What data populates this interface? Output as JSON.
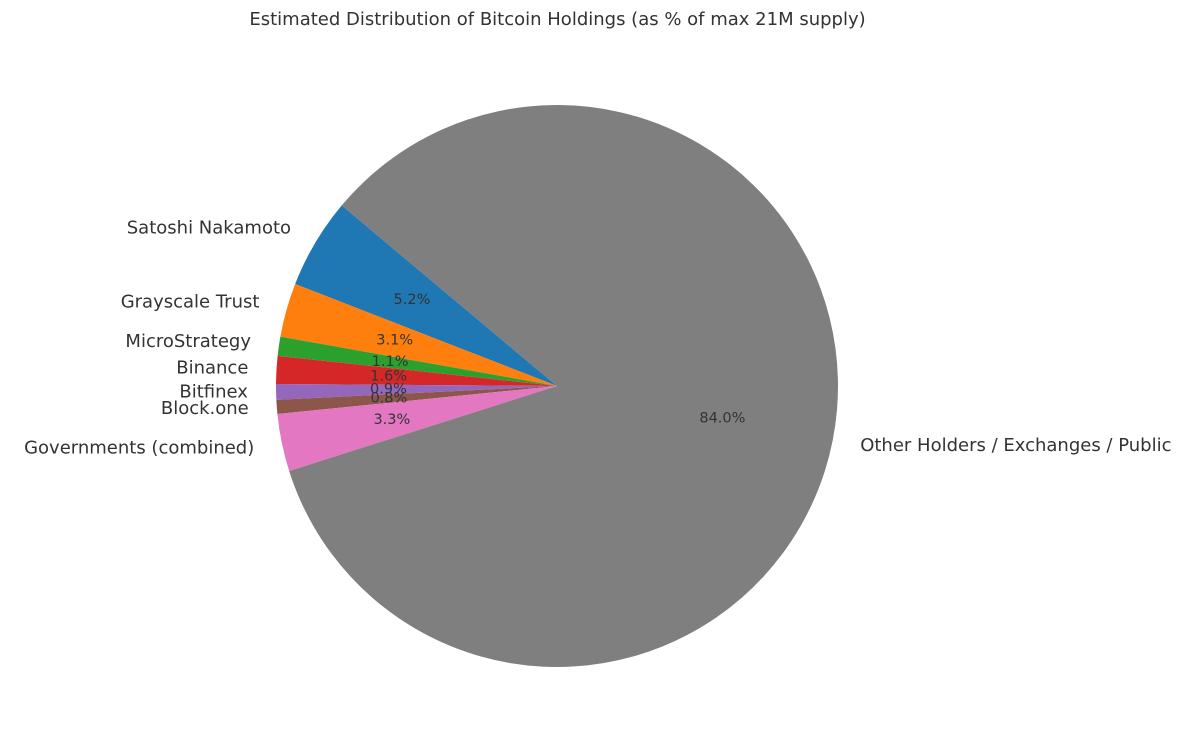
{
  "chart_data": {
    "type": "pie",
    "title": "Estimated Distribution of Bitcoin Holdings (as % of max 21M supply)",
    "labels": [
      "Satoshi Nakamoto",
      "Grayscale Trust",
      "MicroStrategy",
      "Binance",
      "Bitfinex",
      "Block.one",
      "Governments (combined)",
      "Other Holders / Exchanges / Public"
    ],
    "values": [
      5.2,
      3.1,
      1.1,
      1.6,
      0.9,
      0.8,
      3.3,
      84.0
    ],
    "percent_labels": [
      "5.2%",
      "3.1%",
      "1.1%",
      "1.6%",
      "0.9%",
      "0.8%",
      "3.3%",
      "84.0%"
    ],
    "colors": [
      "#1f77b4",
      "#ff7f0e",
      "#2ca02c",
      "#d62728",
      "#9467bd",
      "#8c564b",
      "#e377c2",
      "#7f7f7f"
    ],
    "start_angle_deg": 140,
    "direction": "counterclockwise",
    "legend": "none"
  }
}
